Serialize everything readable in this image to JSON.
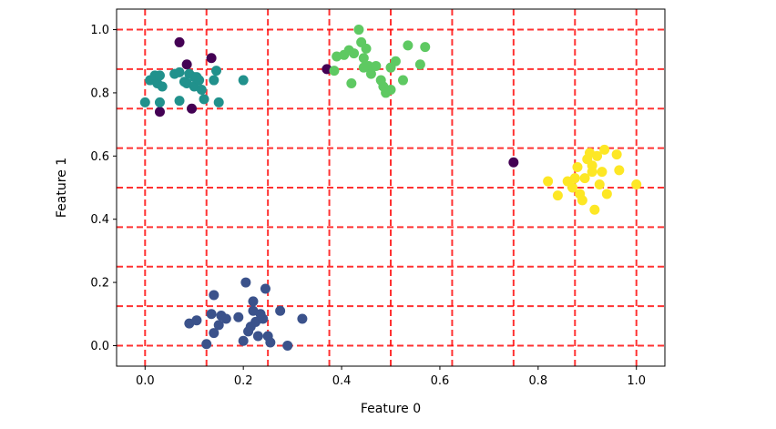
{
  "chart_data": {
    "type": "scatter",
    "xlabel": "Feature 0",
    "ylabel": "Feature 1",
    "xlim": [
      -0.058,
      1.058
    ],
    "ylim": [
      -0.065,
      1.065
    ],
    "xticks": [
      0.0,
      0.2,
      0.4,
      0.6,
      0.8,
      1.0
    ],
    "xtick_labels": [
      "0.0",
      "0.2",
      "0.4",
      "0.6",
      "0.8",
      "1.0"
    ],
    "yticks": [
      0.0,
      0.2,
      0.4,
      0.6,
      0.8,
      1.0
    ],
    "ytick_labels": [
      "0.0",
      "0.2",
      "0.4",
      "0.6",
      "0.8",
      "1.0"
    ],
    "grid": {
      "on": true,
      "style": "dashed",
      "color": "#ff0000",
      "x": [
        0.0,
        0.125,
        0.25,
        0.375,
        0.5,
        0.625,
        0.75,
        0.875,
        1.0
      ],
      "y": [
        0.0,
        0.125,
        0.25,
        0.375,
        0.5,
        0.625,
        0.75,
        0.875,
        1.0
      ]
    },
    "series": [
      {
        "color": "#440154",
        "points": [
          [
            0.07,
            0.96
          ],
          [
            0.085,
            0.89
          ],
          [
            0.135,
            0.91
          ],
          [
            0.03,
            0.74
          ],
          [
            0.095,
            0.75
          ],
          [
            0.37,
            0.875
          ],
          [
            0.75,
            0.58
          ]
        ]
      },
      {
        "color": "#3b528b",
        "points": [
          [
            0.09,
            0.07
          ],
          [
            0.105,
            0.08
          ],
          [
            0.125,
            0.005
          ],
          [
            0.135,
            0.1
          ],
          [
            0.14,
            0.16
          ],
          [
            0.14,
            0.04
          ],
          [
            0.15,
            0.065
          ],
          [
            0.155,
            0.095
          ],
          [
            0.165,
            0.085
          ],
          [
            0.19,
            0.09
          ],
          [
            0.2,
            0.015
          ],
          [
            0.205,
            0.2
          ],
          [
            0.21,
            0.045
          ],
          [
            0.215,
            0.06
          ],
          [
            0.22,
            0.14
          ],
          [
            0.22,
            0.11
          ],
          [
            0.225,
            0.075
          ],
          [
            0.23,
            0.03
          ],
          [
            0.235,
            0.1
          ],
          [
            0.24,
            0.085
          ],
          [
            0.245,
            0.18
          ],
          [
            0.25,
            0.03
          ],
          [
            0.255,
            0.01
          ],
          [
            0.275,
            0.11
          ],
          [
            0.29,
            0.0
          ],
          [
            0.32,
            0.085
          ]
        ]
      },
      {
        "color": "#21918c",
        "points": [
          [
            0.0,
            0.77
          ],
          [
            0.01,
            0.84
          ],
          [
            0.02,
            0.855
          ],
          [
            0.025,
            0.83
          ],
          [
            0.03,
            0.855
          ],
          [
            0.035,
            0.82
          ],
          [
            0.03,
            0.77
          ],
          [
            0.06,
            0.86
          ],
          [
            0.07,
            0.865
          ],
          [
            0.07,
            0.775
          ],
          [
            0.08,
            0.835
          ],
          [
            0.085,
            0.83
          ],
          [
            0.09,
            0.86
          ],
          [
            0.1,
            0.82
          ],
          [
            0.1,
            0.85
          ],
          [
            0.105,
            0.85
          ],
          [
            0.11,
            0.84
          ],
          [
            0.115,
            0.81
          ],
          [
            0.12,
            0.78
          ],
          [
            0.14,
            0.84
          ],
          [
            0.145,
            0.87
          ],
          [
            0.15,
            0.77
          ],
          [
            0.2,
            0.84
          ]
        ]
      },
      {
        "color": "#5ec962",
        "points": [
          [
            0.385,
            0.87
          ],
          [
            0.39,
            0.915
          ],
          [
            0.405,
            0.92
          ],
          [
            0.415,
            0.935
          ],
          [
            0.42,
            0.83
          ],
          [
            0.425,
            0.925
          ],
          [
            0.435,
            1.0
          ],
          [
            0.44,
            0.96
          ],
          [
            0.445,
            0.91
          ],
          [
            0.445,
            0.88
          ],
          [
            0.45,
            0.94
          ],
          [
            0.455,
            0.885
          ],
          [
            0.46,
            0.86
          ],
          [
            0.47,
            0.885
          ],
          [
            0.48,
            0.84
          ],
          [
            0.485,
            0.82
          ],
          [
            0.49,
            0.8
          ],
          [
            0.5,
            0.81
          ],
          [
            0.5,
            0.88
          ],
          [
            0.51,
            0.9
          ],
          [
            0.525,
            0.84
          ],
          [
            0.535,
            0.95
          ],
          [
            0.56,
            0.89
          ],
          [
            0.57,
            0.945
          ]
        ]
      },
      {
        "color": "#fde725",
        "points": [
          [
            0.82,
            0.52
          ],
          [
            0.84,
            0.475
          ],
          [
            0.86,
            0.52
          ],
          [
            0.87,
            0.5
          ],
          [
            0.875,
            0.53
          ],
          [
            0.88,
            0.565
          ],
          [
            0.885,
            0.48
          ],
          [
            0.89,
            0.46
          ],
          [
            0.895,
            0.53
          ],
          [
            0.9,
            0.59
          ],
          [
            0.905,
            0.61
          ],
          [
            0.91,
            0.57
          ],
          [
            0.91,
            0.55
          ],
          [
            0.915,
            0.43
          ],
          [
            0.92,
            0.6
          ],
          [
            0.925,
            0.51
          ],
          [
            0.93,
            0.55
          ],
          [
            0.935,
            0.62
          ],
          [
            0.94,
            0.48
          ],
          [
            0.96,
            0.605
          ],
          [
            0.965,
            0.555
          ],
          [
            1.0,
            0.51
          ]
        ]
      }
    ]
  }
}
